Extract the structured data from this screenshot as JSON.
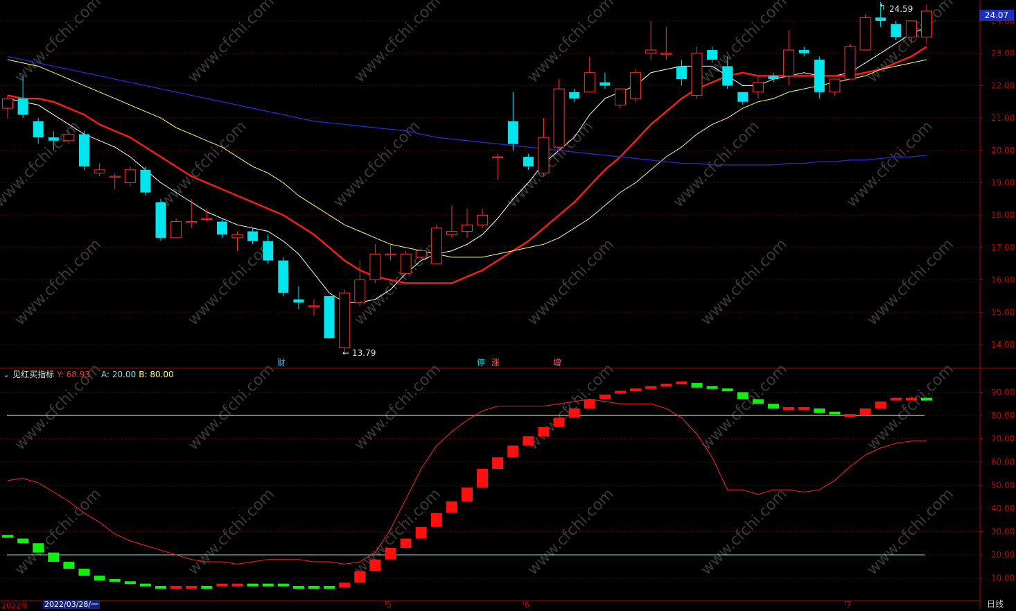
{
  "colors": {
    "up": "#ff3030",
    "down": "#00e5ee",
    "ma5": "#ffffff",
    "ma10": "#ff1a1a",
    "ma20": "#ffff66",
    "ma60": "#2a2ad8",
    "grid": "#5a0000",
    "axis": "#b00000",
    "ind_line": "#ff2020",
    "ind_up": "#ff1010",
    "ind_down": "#10f010",
    "level_a": "#80e0e0",
    "level_b": "#ffff99"
  },
  "header": {
    "current_price": "24.07",
    "period": "日线"
  },
  "annotations": {
    "high_label": "24.59",
    "low_label": "13.79",
    "event_1": "财",
    "event_2": "停",
    "event_3": "涨",
    "event_4": "增"
  },
  "indicator": {
    "name": "见红买指标",
    "y_label": "Y: 68.93",
    "a_label": "A: 20.00",
    "b_label": "B: 80.00"
  },
  "xaxis": {
    "year_label": "2022年",
    "cursor_date": "2022/03/28/一",
    "month_labels": [
      "5",
      "6",
      "7"
    ]
  },
  "watermark_text": "www.cfchi.com",
  "chart_data": [
    {
      "type": "candlestick",
      "ylim": [
        13.4,
        24.2
      ],
      "ticks": [
        14,
        15,
        16,
        17,
        18,
        19,
        20,
        21,
        22,
        23,
        24
      ],
      "tick_labels": [
        "14.00",
        "15.00",
        "16.00",
        "17.00",
        "18.00",
        "19.00",
        "20.00",
        "21.00",
        "22.00",
        "23.00",
        "24.00"
      ],
      "candles": [
        [
          21.3,
          21.6,
          21.0,
          21.7
        ],
        [
          21.6,
          21.1,
          21.0,
          22.3
        ],
        [
          20.9,
          20.4,
          20.2,
          21.0
        ],
        [
          20.4,
          20.3,
          20.0,
          20.6
        ],
        [
          20.3,
          20.5,
          20.2,
          20.6
        ],
        [
          20.5,
          19.5,
          19.4,
          20.6
        ],
        [
          19.3,
          19.4,
          19.2,
          19.6
        ],
        [
          19.2,
          19.2,
          18.8,
          19.3
        ],
        [
          19.0,
          19.4,
          18.9,
          19.5
        ],
        [
          19.4,
          18.7,
          18.6,
          19.5
        ],
        [
          18.4,
          17.3,
          17.2,
          18.5
        ],
        [
          17.3,
          17.8,
          17.3,
          17.9
        ],
        [
          17.8,
          17.8,
          17.6,
          18.5
        ],
        [
          17.9,
          17.9,
          17.8,
          18.2
        ],
        [
          17.8,
          17.4,
          17.3,
          17.9
        ],
        [
          17.3,
          17.4,
          16.9,
          17.5
        ],
        [
          17.5,
          17.2,
          17.1,
          17.6
        ],
        [
          17.2,
          16.6,
          16.5,
          17.4
        ],
        [
          16.6,
          15.6,
          15.5,
          16.7
        ],
        [
          15.4,
          15.3,
          15.1,
          15.8
        ],
        [
          15.2,
          15.2,
          14.9,
          15.4
        ],
        [
          15.5,
          14.2,
          14.2,
          15.5
        ],
        [
          13.9,
          15.6,
          13.8,
          15.7
        ],
        [
          15.3,
          16.0,
          15.2,
          16.6
        ],
        [
          16.0,
          16.8,
          15.9,
          17.1
        ],
        [
          16.8,
          16.8,
          16.6,
          17.1
        ],
        [
          16.2,
          16.8,
          16.2,
          16.9
        ],
        [
          16.7,
          16.9,
          16.6,
          17.0
        ],
        [
          16.5,
          17.6,
          16.5,
          17.7
        ],
        [
          17.4,
          17.5,
          17.3,
          18.3
        ],
        [
          17.5,
          17.7,
          17.3,
          18.2
        ],
        [
          17.7,
          18.0,
          17.6,
          18.2
        ],
        [
          19.8,
          19.8,
          19.1,
          19.9
        ],
        [
          20.9,
          20.2,
          20.0,
          21.8
        ],
        [
          19.8,
          19.5,
          19.4,
          19.9
        ],
        [
          19.3,
          20.4,
          19.2,
          21.0
        ],
        [
          20.1,
          21.9,
          20.0,
          22.2
        ],
        [
          21.8,
          21.6,
          21.5,
          21.9
        ],
        [
          21.8,
          22.4,
          21.8,
          22.9
        ],
        [
          22.1,
          22.0,
          21.9,
          22.4
        ],
        [
          21.4,
          21.9,
          21.3,
          21.9
        ],
        [
          21.6,
          22.4,
          21.5,
          22.5
        ],
        [
          23.0,
          23.1,
          22.8,
          24.0
        ],
        [
          23.0,
          23.0,
          22.8,
          23.8
        ],
        [
          22.6,
          22.2,
          22.0,
          22.8
        ],
        [
          21.7,
          23.0,
          21.6,
          23.2
        ],
        [
          23.1,
          22.8,
          22.7,
          23.2
        ],
        [
          22.6,
          22.0,
          21.9,
          22.9
        ],
        [
          21.8,
          21.5,
          21.4,
          21.8
        ],
        [
          21.8,
          22.1,
          21.6,
          22.3
        ],
        [
          22.3,
          22.2,
          22.1,
          22.4
        ],
        [
          22.3,
          23.1,
          22.0,
          23.7
        ],
        [
          23.1,
          23.0,
          22.9,
          23.2
        ],
        [
          22.8,
          21.8,
          21.6,
          22.9
        ],
        [
          21.8,
          22.2,
          21.7,
          22.2
        ],
        [
          22.2,
          23.2,
          22.2,
          23.3
        ],
        [
          23.1,
          24.1,
          23.1,
          24.2
        ],
        [
          24.1,
          24.0,
          23.8,
          24.59
        ],
        [
          23.9,
          23.5,
          23.4,
          24.0
        ],
        [
          23.5,
          24.0,
          23.3,
          24.0
        ],
        [
          23.5,
          24.3,
          23.3,
          24.5
        ]
      ],
      "ma": [
        {
          "name": "MA5",
          "color": "ma5",
          "values": [
            21.6,
            21.5,
            21.4,
            21.1,
            20.8,
            20.5,
            20.3,
            20.1,
            19.8,
            19.4,
            19.0,
            18.7,
            18.4,
            18.1,
            17.9,
            17.7,
            17.6,
            17.5,
            17.2,
            16.8,
            16.2,
            15.6,
            15.3,
            15.3,
            15.4,
            15.7,
            16.2,
            16.6,
            16.8,
            16.9,
            17.1,
            17.4,
            17.9,
            18.5,
            19.0,
            19.6,
            20.0,
            20.4,
            21.1,
            21.6,
            21.8,
            22.0,
            22.4,
            22.5,
            22.6,
            22.6,
            22.6,
            22.3,
            22.0,
            22.0,
            22.2,
            22.3,
            22.4,
            22.3,
            22.3,
            22.4,
            22.7,
            23.0,
            23.3,
            23.6,
            23.8
          ]
        },
        {
          "name": "MA10",
          "color": "ma10",
          "values": [
            21.7,
            21.6,
            21.6,
            21.5,
            21.3,
            21.1,
            20.8,
            20.6,
            20.4,
            20.1,
            19.8,
            19.5,
            19.2,
            19.0,
            18.8,
            18.6,
            18.4,
            18.2,
            18.0,
            17.7,
            17.4,
            17.0,
            16.6,
            16.3,
            16.1,
            16.0,
            15.9,
            15.9,
            15.9,
            15.9,
            16.1,
            16.3,
            16.6,
            16.9,
            17.2,
            17.6,
            18.0,
            18.4,
            18.9,
            19.4,
            19.8,
            20.3,
            20.8,
            21.2,
            21.6,
            21.9,
            22.1,
            22.3,
            22.4,
            22.3,
            22.3,
            22.3,
            22.3,
            22.3,
            22.3,
            22.3,
            22.4,
            22.5,
            22.7,
            22.9,
            23.2
          ]
        },
        {
          "name": "MA20",
          "color": "ma20",
          "values": [
            22.8,
            22.7,
            22.6,
            22.4,
            22.2,
            22.0,
            21.8,
            21.6,
            21.4,
            21.2,
            21.0,
            20.7,
            20.5,
            20.3,
            20.1,
            19.8,
            19.5,
            19.3,
            19.0,
            18.6,
            18.3,
            18.0,
            17.7,
            17.5,
            17.3,
            17.1,
            17.0,
            16.9,
            16.8,
            16.7,
            16.7,
            16.7,
            16.8,
            16.9,
            17.0,
            17.1,
            17.3,
            17.6,
            17.9,
            18.3,
            18.7,
            19.0,
            19.4,
            19.8,
            20.1,
            20.5,
            20.8,
            21.0,
            21.3,
            21.5,
            21.6,
            21.8,
            21.9,
            22.0,
            22.1,
            22.2,
            22.3,
            22.5,
            22.6,
            22.7,
            22.8
          ]
        },
        {
          "name": "MA60",
          "color": "ma60",
          "values": [
            22.9,
            22.8,
            22.7,
            22.6,
            22.5,
            22.4,
            22.3,
            22.2,
            22.1,
            22.0,
            21.9,
            21.8,
            21.7,
            21.6,
            21.5,
            21.4,
            21.3,
            21.2,
            21.1,
            21.0,
            20.9,
            20.85,
            20.8,
            20.75,
            20.7,
            20.65,
            20.6,
            20.5,
            20.4,
            20.35,
            20.3,
            20.25,
            20.2,
            20.15,
            20.1,
            20.05,
            20.0,
            19.95,
            19.9,
            19.85,
            19.8,
            19.75,
            19.7,
            19.65,
            19.6,
            19.6,
            19.55,
            19.55,
            19.55,
            19.55,
            19.55,
            19.6,
            19.6,
            19.65,
            19.65,
            19.7,
            19.7,
            19.75,
            19.8,
            19.8,
            19.85
          ]
        }
      ]
    },
    {
      "type": "indicator",
      "ylim": [
        0,
        100
      ],
      "ticks": [
        10,
        20,
        30,
        40,
        50,
        60,
        70,
        80,
        90
      ],
      "tick_labels": [
        "10.00",
        "20.00",
        "30.00",
        "40.00",
        "50.00",
        "60.00",
        "70.00",
        "80.00",
        "90.00"
      ],
      "level_a": 20,
      "level_b": 80,
      "line": [
        52,
        53,
        51,
        47,
        43,
        38,
        34,
        29,
        26,
        24,
        22,
        20,
        18,
        17,
        17,
        16,
        17,
        18,
        18,
        18,
        17,
        17,
        16,
        17,
        21,
        31,
        44,
        57,
        67,
        73,
        78,
        82,
        84,
        84,
        84,
        84,
        85,
        86,
        87,
        86,
        85,
        85,
        85,
        83,
        79,
        72,
        62,
        48,
        48,
        46,
        48,
        48,
        47,
        48,
        52,
        58,
        63,
        66,
        68,
        69,
        69
      ],
      "blocks": [
        [
          28,
          27,
          "d"
        ],
        [
          27,
          25,
          "d"
        ],
        [
          25,
          21,
          "d"
        ],
        [
          21,
          17,
          "d"
        ],
        [
          17,
          14,
          "d"
        ],
        [
          14,
          11,
          "d"
        ],
        [
          11,
          9,
          "d"
        ],
        [
          9,
          8,
          "d"
        ],
        [
          8,
          7,
          "d"
        ],
        [
          7,
          6,
          "d"
        ],
        [
          6,
          6,
          "d"
        ],
        [
          6,
          6,
          "u"
        ],
        [
          6,
          6,
          "u"
        ],
        [
          6,
          6,
          "d"
        ],
        [
          6,
          7,
          "u"
        ],
        [
          7,
          7,
          "u"
        ],
        [
          7,
          7,
          "d"
        ],
        [
          7,
          7,
          "d"
        ],
        [
          7,
          6,
          "d"
        ],
        [
          6,
          6,
          "d"
        ],
        [
          6,
          6,
          "d"
        ],
        [
          6,
          6,
          "d"
        ],
        [
          6,
          8,
          "u"
        ],
        [
          8,
          13,
          "u"
        ],
        [
          13,
          18,
          "u"
        ],
        [
          18,
          23,
          "u"
        ],
        [
          23,
          27,
          "u"
        ],
        [
          27,
          32,
          "u"
        ],
        [
          32,
          38,
          "u"
        ],
        [
          38,
          43,
          "u"
        ],
        [
          43,
          49,
          "u"
        ],
        [
          49,
          57,
          "u"
        ],
        [
          57,
          62,
          "u"
        ],
        [
          62,
          67,
          "u"
        ],
        [
          67,
          71,
          "u"
        ],
        [
          71,
          75,
          "u"
        ],
        [
          75,
          79,
          "u"
        ],
        [
          79,
          83,
          "u"
        ],
        [
          83,
          87,
          "u"
        ],
        [
          87,
          89,
          "u"
        ],
        [
          89,
          90,
          "u"
        ],
        [
          90,
          91,
          "u"
        ],
        [
          91,
          92,
          "u"
        ],
        [
          92,
          93,
          "u"
        ],
        [
          93,
          94,
          "u"
        ],
        [
          94,
          92,
          "d"
        ],
        [
          92,
          91,
          "d"
        ],
        [
          91,
          90,
          "d"
        ],
        [
          90,
          87,
          "d"
        ],
        [
          87,
          85,
          "d"
        ],
        [
          85,
          83,
          "d"
        ],
        [
          83,
          82,
          "u"
        ],
        [
          82,
          83,
          "u"
        ],
        [
          83,
          81,
          "d"
        ],
        [
          81,
          80,
          "d"
        ],
        [
          80,
          80,
          "u"
        ],
        [
          80,
          83,
          "u"
        ],
        [
          83,
          86,
          "u"
        ],
        [
          86,
          87,
          "u"
        ],
        [
          87,
          87,
          "u"
        ],
        [
          87,
          86,
          "d"
        ]
      ]
    }
  ]
}
